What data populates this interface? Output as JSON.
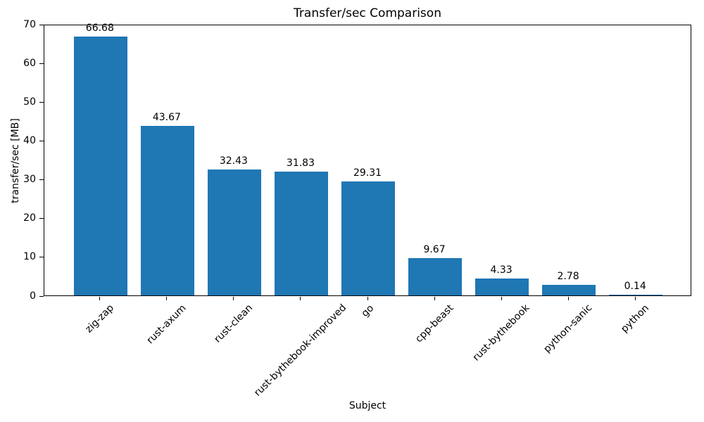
{
  "chart_data": {
    "type": "bar",
    "title": "Transfer/sec Comparison",
    "xlabel": "Subject",
    "ylabel": "transfer/sec [MB]",
    "categories": [
      "zig-zap",
      "rust-axum",
      "rust-clean",
      "rust-bythebook-improved",
      "go",
      "cpp-beast",
      "rust-bythebook",
      "python-sanic",
      "python"
    ],
    "values": [
      66.68,
      43.67,
      32.43,
      31.83,
      29.31,
      9.67,
      4.33,
      2.78,
      0.14
    ],
    "bar_labels": [
      "66.68",
      "43.67",
      "32.43",
      "31.83",
      "29.31",
      "9.67",
      "4.33",
      "2.78",
      "0.14"
    ],
    "ylim": [
      0,
      70
    ],
    "yticks": [
      0,
      10,
      20,
      30,
      40,
      50,
      60,
      70
    ],
    "x_tick_rotation_deg": 45,
    "grid": false,
    "legend_position": "none",
    "bar_color": "#1f77b4",
    "spine_color": "#000000",
    "text_color": "#000000"
  }
}
